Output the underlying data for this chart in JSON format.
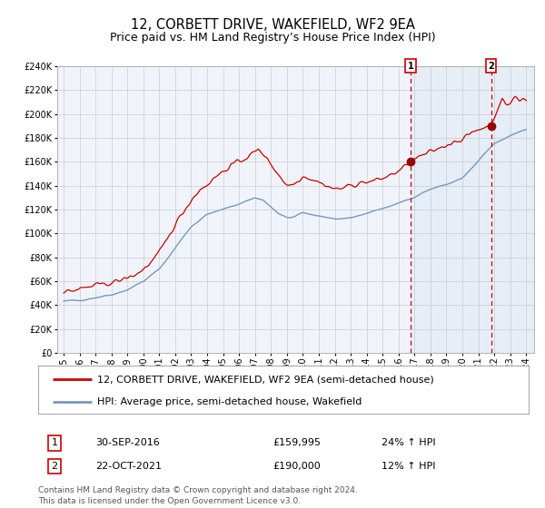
{
  "title": "12, CORBETT DRIVE, WAKEFIELD, WF2 9EA",
  "subtitle": "Price paid vs. HM Land Registry’s House Price Index (HPI)",
  "ylim": [
    0,
    240000
  ],
  "yticks": [
    0,
    20000,
    40000,
    60000,
    80000,
    100000,
    120000,
    140000,
    160000,
    180000,
    200000,
    220000,
    240000
  ],
  "x_start_year": 1995,
  "x_end_year": 2024,
  "red_line_color": "#cc0000",
  "blue_line_color": "#7799bb",
  "blue_fill_color": "#dce8f5",
  "marker_color": "#990000",
  "dashed_line_color": "#cc0000",
  "grid_color": "#cccccc",
  "background_color": "#ffffff",
  "plot_bg_color": "#f0f4fa",
  "legend1_label": "12, CORBETT DRIVE, WAKEFIELD, WF2 9EA (semi-detached house)",
  "legend2_label": "HPI: Average price, semi-detached house, Wakefield",
  "sale1_label": "1",
  "sale1_date": "30-SEP-2016",
  "sale1_price": "£159,995",
  "sale1_hpi": "24% ↑ HPI",
  "sale1_year": 2016.75,
  "sale1_value": 159995,
  "sale2_label": "2",
  "sale2_date": "22-OCT-2021",
  "sale2_price": "£190,000",
  "sale2_hpi": "12% ↑ HPI",
  "sale2_year": 2021.8,
  "sale2_value": 190000,
  "footer": "Contains HM Land Registry data © Crown copyright and database right 2024.\nThis data is licensed under the Open Government Licence v3.0.",
  "title_fontsize": 10.5,
  "subtitle_fontsize": 9,
  "tick_fontsize": 7,
  "legend_fontsize": 8,
  "footer_fontsize": 6.5,
  "annot_box_color": "#cc0000",
  "sale_fontsize": 8
}
